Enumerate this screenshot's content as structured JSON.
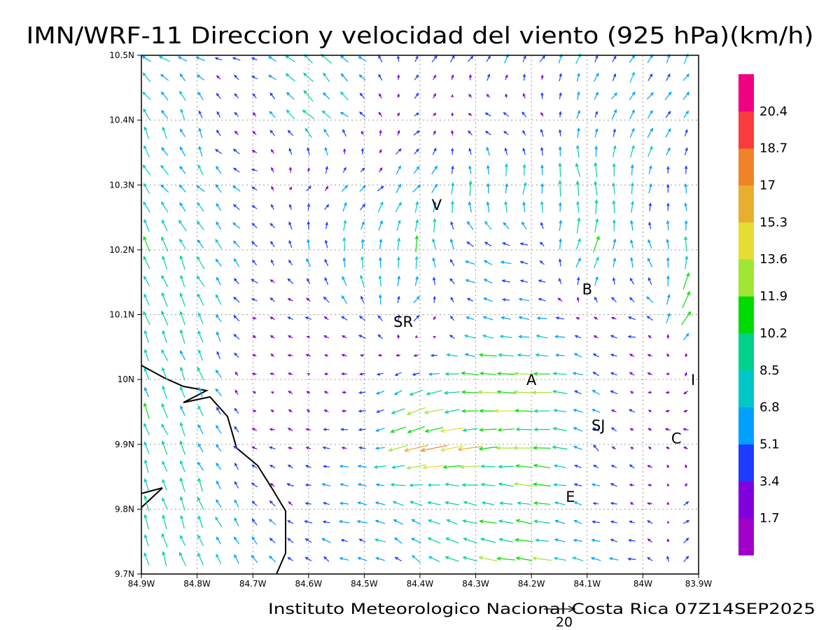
{
  "chart_data": {
    "type": "vector-field",
    "title": "IMN/WRF-11 Direccion y velocidad del viento (925 hPa)(km/h)",
    "footer": "Instituto Meteorologico Nacional Costa Rica 07Z14SEP2025",
    "reference_vector": {
      "value": 20,
      "label": "20"
    },
    "xlim": [
      -84.9,
      -83.9
    ],
    "ylim": [
      9.7,
      10.5
    ],
    "x_ticks": [
      "84.9W",
      "84.8W",
      "84.7W",
      "84.6W",
      "84.5W",
      "84.4W",
      "84.3W",
      "84.2W",
      "84.1W",
      "84W",
      "83.9W"
    ],
    "y_ticks": [
      "10.5N",
      "10.4N",
      "10.3N",
      "10.2N",
      "10.1N",
      "10N",
      "9.9N",
      "9.8N",
      "9.7N"
    ],
    "grid": true,
    "colorbar": {
      "levels": [
        "1.7",
        "3.4",
        "5.1",
        "6.8",
        "8.5",
        "10.2",
        "11.9",
        "13.6",
        "15.3",
        "17",
        "18.7",
        "20.4"
      ],
      "colors": [
        "#a000c8",
        "#8200dc",
        "#1e3cff",
        "#00a0ff",
        "#00c8c8",
        "#00d28c",
        "#00dc00",
        "#a0e632",
        "#e6dc32",
        "#e6af2d",
        "#f08228",
        "#fa3c3c",
        "#f00082"
      ]
    },
    "stations": [
      {
        "label": "V",
        "lon": -84.37,
        "lat": 10.27
      },
      {
        "label": "SR",
        "lon": -84.43,
        "lat": 10.09
      },
      {
        "label": "B",
        "lon": -84.1,
        "lat": 10.14
      },
      {
        "label": "A",
        "lon": -84.2,
        "lat": 10.0
      },
      {
        "label": "I",
        "lon": -83.91,
        "lat": 10.0
      },
      {
        "label": "SJ",
        "lon": -84.08,
        "lat": 9.93
      },
      {
        "label": "C",
        "lon": -83.94,
        "lat": 9.91
      },
      {
        "label": "E",
        "lon": -84.13,
        "lat": 9.82
      }
    ],
    "wind_grid_note": "u,v in km/h sampled every 0.1 deg; rows from 10.5N to 9.7N, columns from 84.9W to 83.9W",
    "u": [
      [
        -7,
        -5,
        -3,
        -6,
        -4,
        2,
        3,
        3,
        2,
        3,
        3
      ],
      [
        -3,
        -2,
        -2,
        -6,
        -3,
        3,
        -4,
        -3,
        2,
        3,
        3
      ],
      [
        -4,
        -4,
        -4,
        3,
        4,
        4,
        0,
        2,
        -3,
        2,
        -2
      ],
      [
        -4,
        -4,
        -3,
        -2,
        1,
        0,
        -6,
        -5,
        6,
        -3,
        1
      ],
      [
        -3,
        -3,
        -3,
        -3,
        -4,
        4,
        -6,
        -6,
        -2,
        -5,
        10
      ],
      [
        -3,
        -3,
        -2,
        -2,
        -3,
        -6,
        -10,
        -12,
        -5,
        -2,
        -2
      ],
      [
        -3,
        -3,
        -3,
        -3,
        -4,
        -15,
        -13,
        -13,
        -4,
        -2,
        -3
      ],
      [
        -3,
        -3,
        -3,
        -4,
        -6,
        -6,
        -8,
        -10,
        -4,
        -3,
        5
      ],
      [
        -3,
        -3,
        -3,
        -4,
        -5,
        -4,
        -10,
        -12,
        -6,
        -5,
        4
      ]
    ],
    "v": [
      [
        3,
        2,
        1,
        6,
        4,
        4,
        4,
        5,
        5,
        5,
        5
      ],
      [
        8,
        6,
        2,
        6,
        3,
        2,
        1,
        2,
        5,
        5,
        4
      ],
      [
        6,
        5,
        2,
        3,
        3,
        6,
        8,
        8,
        10,
        6,
        4
      ],
      [
        8,
        7,
        3,
        5,
        8,
        9,
        2,
        1,
        9,
        5,
        10
      ],
      [
        8,
        8,
        1,
        1,
        4,
        3,
        2,
        1,
        1,
        1,
        12
      ],
      [
        8,
        7,
        1,
        1,
        -1,
        -2,
        1,
        0,
        2,
        1,
        -4
      ],
      [
        8,
        7,
        1,
        1,
        0,
        -5,
        -1,
        0,
        3,
        1,
        2
      ],
      [
        8,
        8,
        4,
        1,
        1,
        3,
        2,
        2,
        1,
        1,
        2
      ],
      [
        8,
        8,
        4,
        3,
        2,
        4,
        2,
        1,
        2,
        1,
        6
      ]
    ]
  }
}
